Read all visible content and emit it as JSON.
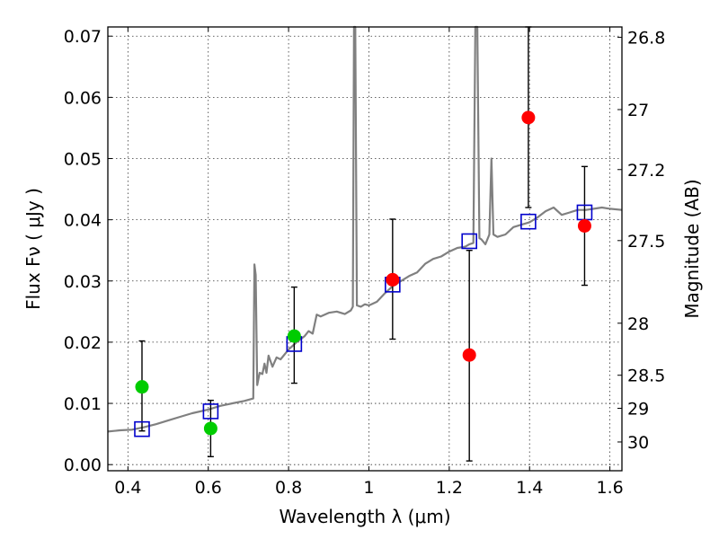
{
  "chart_data": {
    "type": "scatter",
    "xlabel": "Wavelength  λ (μm)",
    "ylabel": "Flux  Fν  ( μJy )",
    "ylabel_right": "Magnitude (AB)",
    "xlim": [
      0.35,
      1.63
    ],
    "ylim": [
      -0.001,
      0.0715
    ],
    "grid": true,
    "x_ticks": [
      0.4,
      0.6,
      0.8,
      1.0,
      1.2,
      1.4,
      1.6
    ],
    "x_tick_labels": [
      "0.4",
      "0.6",
      "0.8",
      "1",
      "1.2",
      "1.4",
      "1.6"
    ],
    "y_ticks": [
      0.0,
      0.01,
      0.02,
      0.03,
      0.04,
      0.05,
      0.06,
      0.07
    ],
    "y_tick_labels": [
      "0.00",
      "0.01",
      "0.02",
      "0.03",
      "0.04",
      "0.05",
      "0.06",
      "0.07"
    ],
    "right_ticks": [
      {
        "label": "26.8",
        "flux": 0.0698
      },
      {
        "label": "27",
        "flux": 0.058
      },
      {
        "label": "27.2",
        "flux": 0.0482
      },
      {
        "label": "27.5",
        "flux": 0.0366
      },
      {
        "label": "28",
        "flux": 0.0231
      },
      {
        "label": "28.5",
        "flux": 0.0146
      },
      {
        "label": "29",
        "flux": 0.0092
      },
      {
        "label": "30",
        "flux": 0.0037
      }
    ],
    "template_color": "#808080",
    "template_spectrum": [
      [
        0.35,
        0.0054
      ],
      [
        0.38,
        0.0056
      ],
      [
        0.41,
        0.0057
      ],
      [
        0.44,
        0.0061
      ],
      [
        0.47,
        0.0066
      ],
      [
        0.5,
        0.0072
      ],
      [
        0.53,
        0.0078
      ],
      [
        0.56,
        0.0084
      ],
      [
        0.6,
        0.009
      ],
      [
        0.63,
        0.0096
      ],
      [
        0.66,
        0.01
      ],
      [
        0.69,
        0.0104
      ],
      [
        0.712,
        0.0108
      ],
      [
        0.715,
        0.0327
      ],
      [
        0.718,
        0.031
      ],
      [
        0.722,
        0.013
      ],
      [
        0.728,
        0.015
      ],
      [
        0.735,
        0.0148
      ],
      [
        0.74,
        0.0165
      ],
      [
        0.745,
        0.015
      ],
      [
        0.75,
        0.0178
      ],
      [
        0.76,
        0.016
      ],
      [
        0.77,
        0.0175
      ],
      [
        0.78,
        0.0172
      ],
      [
        0.8,
        0.0188
      ],
      [
        0.82,
        0.02
      ],
      [
        0.84,
        0.021
      ],
      [
        0.85,
        0.0218
      ],
      [
        0.86,
        0.0214
      ],
      [
        0.87,
        0.0245
      ],
      [
        0.88,
        0.0242
      ],
      [
        0.9,
        0.0248
      ],
      [
        0.92,
        0.025
      ],
      [
        0.94,
        0.0246
      ],
      [
        0.955,
        0.0252
      ],
      [
        0.96,
        0.0258
      ],
      [
        0.963,
        0.0715
      ],
      [
        0.966,
        0.0715
      ],
      [
        0.97,
        0.026
      ],
      [
        0.98,
        0.0258
      ],
      [
        0.99,
        0.0262
      ],
      [
        1.0,
        0.026
      ],
      [
        1.02,
        0.0266
      ],
      [
        1.04,
        0.028
      ],
      [
        1.06,
        0.0292
      ],
      [
        1.08,
        0.03
      ],
      [
        1.1,
        0.0308
      ],
      [
        1.12,
        0.0314
      ],
      [
        1.14,
        0.0328
      ],
      [
        1.16,
        0.0336
      ],
      [
        1.18,
        0.034
      ],
      [
        1.2,
        0.0348
      ],
      [
        1.22,
        0.0354
      ],
      [
        1.24,
        0.0356
      ],
      [
        1.25,
        0.036
      ],
      [
        1.26,
        0.0362
      ],
      [
        1.265,
        0.0715
      ],
      [
        1.27,
        0.0715
      ],
      [
        1.275,
        0.037
      ],
      [
        1.28,
        0.0368
      ],
      [
        1.29,
        0.036
      ],
      [
        1.3,
        0.0376
      ],
      [
        1.305,
        0.05
      ],
      [
        1.31,
        0.0376
      ],
      [
        1.32,
        0.0372
      ],
      [
        1.34,
        0.0376
      ],
      [
        1.36,
        0.0388
      ],
      [
        1.38,
        0.0392
      ],
      [
        1.4,
        0.0396
      ],
      [
        1.42,
        0.0404
      ],
      [
        1.44,
        0.0414
      ],
      [
        1.46,
        0.042
      ],
      [
        1.48,
        0.0408
      ],
      [
        1.5,
        0.0412
      ],
      [
        1.52,
        0.0416
      ],
      [
        1.54,
        0.0416
      ],
      [
        1.56,
        0.0418
      ],
      [
        1.58,
        0.042
      ],
      [
        1.6,
        0.0418
      ],
      [
        1.63,
        0.0416
      ]
    ],
    "series": [
      {
        "kind": "open-square",
        "color": "#0000cc",
        "points": [
          {
            "x": 0.435,
            "y": 0.0058
          },
          {
            "x": 0.606,
            "y": 0.0087
          },
          {
            "x": 0.814,
            "y": 0.0197
          },
          {
            "x": 1.059,
            "y": 0.0294
          },
          {
            "x": 1.25,
            "y": 0.0365
          },
          {
            "x": 1.397,
            "y": 0.0397
          },
          {
            "x": 1.537,
            "y": 0.0412
          }
        ]
      },
      {
        "kind": "filled-circle",
        "color": "#00cc00",
        "points": [
          {
            "x": 0.435,
            "y": 0.0127,
            "err_lo": 0.0055,
            "err_hi": 0.0202
          },
          {
            "x": 0.606,
            "y": 0.0059,
            "err_lo": 0.0013,
            "err_hi": 0.0105
          },
          {
            "x": 0.814,
            "y": 0.021,
            "err_lo": 0.0133,
            "err_hi": 0.029
          }
        ]
      },
      {
        "kind": "filled-circle",
        "color": "#ff0000",
        "points": [
          {
            "x": 1.059,
            "y": 0.0302,
            "err_lo": 0.0205,
            "err_hi": 0.0401
          },
          {
            "x": 1.25,
            "y": 0.0179,
            "err_lo": 0.0006,
            "err_hi": 0.035
          },
          {
            "x": 1.397,
            "y": 0.0567,
            "err_lo": 0.042,
            "err_hi": 0.0715
          },
          {
            "x": 1.537,
            "y": 0.039,
            "err_lo": 0.0293,
            "err_hi": 0.0487
          }
        ]
      }
    ]
  }
}
